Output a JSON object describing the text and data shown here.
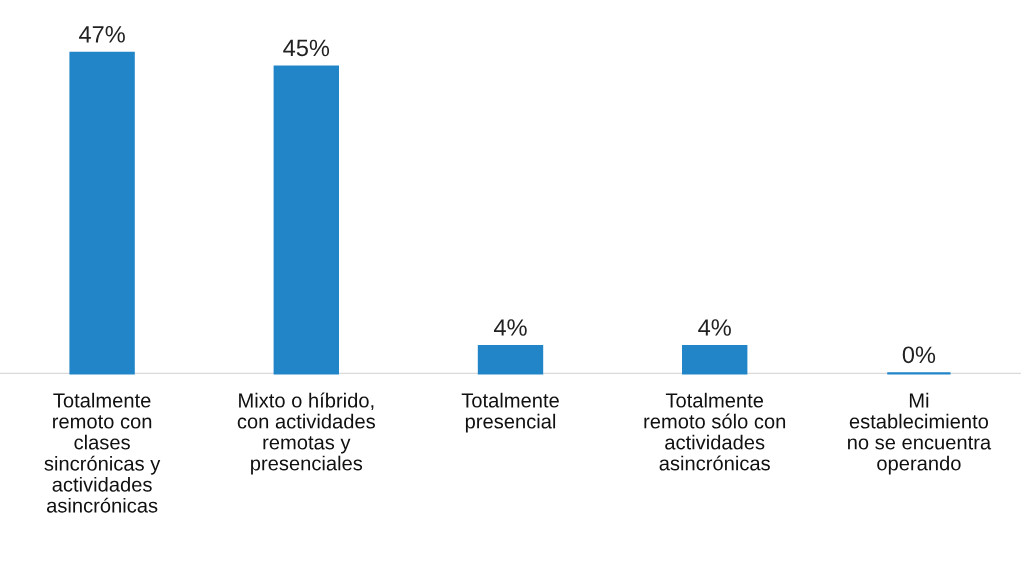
{
  "chart_data": {
    "type": "bar",
    "categories": [
      "Totalmente\nremoto con\nclases\nsincrónicas y\nactividades\nasincrónicas",
      "Mixto o híbrido,\ncon actividades\nremotas y\npresenciales",
      "Totalmente\npresencial",
      "Totalmente\nremoto sólo con\nactividades\nasincrónicas",
      "Mi\nestablecimiento\nno se encuentra\noperando"
    ],
    "values": [
      47,
      45,
      4,
      4,
      0
    ],
    "value_labels": [
      "47%",
      "45%",
      "4%",
      "4%",
      "0%"
    ],
    "color": "#2185c8",
    "grid": false,
    "legend": false
  }
}
